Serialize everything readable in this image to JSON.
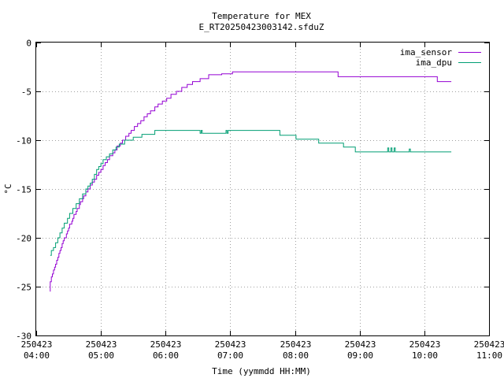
{
  "chart_data": {
    "type": "line",
    "title": "Temperature for MEX",
    "subtitle": "E_RT20250423003142.sfduZ",
    "xlabel": "Time (yymmdd HH:MM)",
    "ylabel": "°C",
    "xlim": [
      "2025-04-23 04:00",
      "2025-04-23 11:00"
    ],
    "ylim": [
      -30,
      0
    ],
    "grid": true,
    "legend_position": "top-right",
    "x_ticks": [
      {
        "date": "250423",
        "time": "04:00"
      },
      {
        "date": "250423",
        "time": "05:00"
      },
      {
        "date": "250423",
        "time": "06:00"
      },
      {
        "date": "250423",
        "time": "07:00"
      },
      {
        "date": "250423",
        "time": "08:00"
      },
      {
        "date": "250423",
        "time": "09:00"
      },
      {
        "date": "250423",
        "time": "10:00"
      },
      {
        "date": "250423",
        "time": "11:00"
      }
    ],
    "y_ticks": [
      -30,
      -25,
      -20,
      -15,
      -10,
      -5,
      0
    ],
    "series": [
      {
        "name": "ima_sensor",
        "color": "#9400d3",
        "points": [
          [
            "04:13",
            -25.5
          ],
          [
            "04:13",
            -24.5
          ],
          [
            "04:14",
            -24.0
          ],
          [
            "04:15",
            -23.7
          ],
          [
            "04:16",
            -23.3
          ],
          [
            "04:17",
            -23.0
          ],
          [
            "04:18",
            -22.7
          ],
          [
            "04:19",
            -22.3
          ],
          [
            "04:20",
            -22.0
          ],
          [
            "04:21",
            -21.6
          ],
          [
            "04:22",
            -21.3
          ],
          [
            "04:23",
            -21.0
          ],
          [
            "04:24",
            -20.6
          ],
          [
            "04:25",
            -20.3
          ],
          [
            "04:26",
            -20.0
          ],
          [
            "04:28",
            -19.6
          ],
          [
            "04:29",
            -19.3
          ],
          [
            "04:30",
            -19.0
          ],
          [
            "04:31",
            -18.6
          ],
          [
            "04:33",
            -18.3
          ],
          [
            "04:34",
            -18.0
          ],
          [
            "04:35",
            -17.6
          ],
          [
            "04:37",
            -17.3
          ],
          [
            "04:38",
            -17.0
          ],
          [
            "04:40",
            -16.6
          ],
          [
            "04:41",
            -16.3
          ],
          [
            "04:43",
            -16.0
          ],
          [
            "04:44",
            -15.7
          ],
          [
            "04:46",
            -15.3
          ],
          [
            "04:48",
            -15.0
          ],
          [
            "04:50",
            -14.6
          ],
          [
            "04:52",
            -14.3
          ],
          [
            "04:54",
            -14.0
          ],
          [
            "04:56",
            -13.6
          ],
          [
            "04:58",
            -13.3
          ],
          [
            "05:00",
            -13.0
          ],
          [
            "05:02",
            -12.6
          ],
          [
            "05:04",
            -12.3
          ],
          [
            "05:06",
            -12.0
          ],
          [
            "05:08",
            -11.6
          ],
          [
            "05:11",
            -11.3
          ],
          [
            "05:13",
            -11.0
          ],
          [
            "05:15",
            -10.6
          ],
          [
            "05:18",
            -10.3
          ],
          [
            "05:20",
            -10.0
          ],
          [
            "05:23",
            -9.6
          ],
          [
            "05:26",
            -9.3
          ],
          [
            "05:28",
            -9.0
          ],
          [
            "05:31",
            -8.6
          ],
          [
            "05:34",
            -8.3
          ],
          [
            "05:37",
            -8.0
          ],
          [
            "05:40",
            -7.6
          ],
          [
            "05:43",
            -7.3
          ],
          [
            "05:46",
            -7.0
          ],
          [
            "05:50",
            -6.6
          ],
          [
            "05:53",
            -6.3
          ],
          [
            "05:57",
            -6.0
          ],
          [
            "06:01",
            -5.7
          ],
          [
            "06:05",
            -5.3
          ],
          [
            "06:10",
            -5.0
          ],
          [
            "06:15",
            -4.6
          ],
          [
            "06:20",
            -4.3
          ],
          [
            "06:25",
            -4.0
          ],
          [
            "06:32",
            -3.7
          ],
          [
            "06:40",
            -3.3
          ],
          [
            "06:52",
            -3.2
          ],
          [
            "07:02",
            -3.0
          ],
          [
            "07:15",
            -3.0
          ],
          [
            "07:35",
            -3.0
          ],
          [
            "08:35",
            -3.0
          ],
          [
            "08:40",
            -3.5
          ],
          [
            "09:30",
            -3.5
          ],
          [
            "10:00",
            -3.5
          ],
          [
            "10:05",
            -3.5
          ],
          [
            "10:12",
            -4.0
          ],
          [
            "10:25",
            -4.0
          ]
        ]
      },
      {
        "name": "ima_dpu",
        "color": "#009e73",
        "points": [
          [
            "04:13",
            -21.8
          ],
          [
            "04:14",
            -21.3
          ],
          [
            "04:16",
            -21.0
          ],
          [
            "04:18",
            -20.5
          ],
          [
            "04:20",
            -20.0
          ],
          [
            "04:22",
            -19.5
          ],
          [
            "04:24",
            -19.0
          ],
          [
            "04:26",
            -18.5
          ],
          [
            "04:29",
            -18.0
          ],
          [
            "04:31",
            -17.5
          ],
          [
            "04:34",
            -17.0
          ],
          [
            "04:37",
            -16.5
          ],
          [
            "04:40",
            -16.0
          ],
          [
            "04:43",
            -15.5
          ],
          [
            "04:46",
            -15.0
          ],
          [
            "04:48",
            -14.7
          ],
          [
            "04:50",
            -14.4
          ],
          [
            "04:52",
            -14.0
          ],
          [
            "04:54",
            -13.5
          ],
          [
            "04:56",
            -13.0
          ],
          [
            "04:58",
            -12.7
          ],
          [
            "05:00",
            -12.4
          ],
          [
            "05:02",
            -12.0
          ],
          [
            "05:05",
            -11.7
          ],
          [
            "05:08",
            -11.4
          ],
          [
            "05:11",
            -11.0
          ],
          [
            "05:14",
            -10.7
          ],
          [
            "05:17",
            -10.4
          ],
          [
            "05:22",
            -10.0
          ],
          [
            "05:30",
            -9.7
          ],
          [
            "05:38",
            -9.4
          ],
          [
            "05:50",
            -9.0
          ],
          [
            "06:00",
            -9.0
          ],
          [
            "06:30",
            -9.0
          ],
          [
            "06:32",
            -9.3
          ],
          [
            "06:33",
            -9.0
          ],
          [
            "06:34",
            -9.3
          ],
          [
            "06:55",
            -9.3
          ],
          [
            "06:56",
            -9.0
          ],
          [
            "06:57",
            -9.3
          ],
          [
            "06:58",
            -9.0
          ],
          [
            "07:45",
            -9.0
          ],
          [
            "07:46",
            -9.5
          ],
          [
            "08:00",
            -9.5
          ],
          [
            "08:01",
            -9.9
          ],
          [
            "08:20",
            -9.9
          ],
          [
            "08:22",
            -10.3
          ],
          [
            "08:35",
            -10.3
          ],
          [
            "08:45",
            -10.7
          ],
          [
            "08:55",
            -10.7
          ],
          [
            "08:56",
            -11.2
          ],
          [
            "09:25",
            -11.2
          ],
          [
            "09:26",
            -10.8
          ],
          [
            "09:27",
            -11.2
          ],
          [
            "09:29",
            -10.8
          ],
          [
            "09:30",
            -11.2
          ],
          [
            "09:32",
            -10.8
          ],
          [
            "09:33",
            -11.2
          ],
          [
            "09:45",
            -11.2
          ],
          [
            "09:46",
            -10.9
          ],
          [
            "09:47",
            -11.2
          ],
          [
            "10:25",
            -11.2
          ]
        ]
      }
    ]
  }
}
